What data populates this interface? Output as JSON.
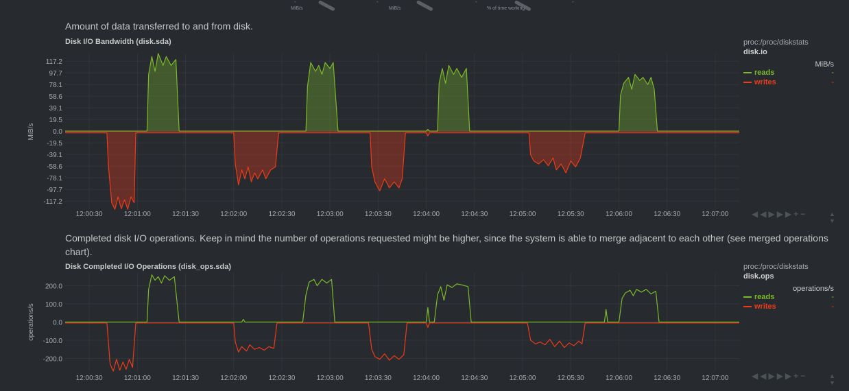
{
  "gauges": [
    {
      "unit": "MiB/s",
      "dash": "-"
    },
    {
      "unit": "MiB/s",
      "dash": "-"
    },
    {
      "unit": "% of time working",
      "dash": "-"
    }
  ],
  "sections": [
    {
      "description": "Amount of data transferred to and from disk.",
      "title": "Disk I/O Bandwidth (disk.sda)",
      "context": "proc:/proc/diskstats",
      "context_id": "disk.io",
      "units": "MiB/s",
      "legend": [
        {
          "name": "reads",
          "value": "-",
          "color": "#7cba29"
        },
        {
          "name": "writes",
          "value": "-",
          "color": "#ee3b19"
        }
      ],
      "toolbar_icons": [
        "rewind-icon",
        "play-icon",
        "forward-icon",
        "zoom-in-icon",
        "zoom-out-icon"
      ]
    },
    {
      "description": "Completed disk I/O operations. Keep in mind the number of operations requested might be higher, since the system is able to merge adjacent to each other (see merged operations chart).",
      "title": "Disk Completed I/O Operations (disk_ops.sda)",
      "context": "proc:/proc/diskstats",
      "context_id": "disk.ops",
      "units": "operations/s",
      "legend": [
        {
          "name": "reads",
          "value": "-",
          "color": "#7cba29"
        },
        {
          "name": "writes",
          "value": "-",
          "color": "#ee3b19"
        }
      ],
      "toolbar_icons": [
        "rewind-icon",
        "play-icon",
        "forward-icon",
        "zoom-in-icon",
        "zoom-out-icon"
      ]
    }
  ],
  "chart_data": [
    {
      "type": "area",
      "title": "Disk I/O Bandwidth (disk.sda)",
      "ylabel": "MiB/s",
      "ylim": [
        -132,
        130
      ],
      "yticks": [
        "117.2",
        "97.7",
        "78.1",
        "58.6",
        "39.1",
        "19.5",
        "0.0",
        "-19.5",
        "-39.1",
        "-58.6",
        "-78.1",
        "-97.7",
        "-117.2"
      ],
      "ytick_values": [
        117.2,
        97.7,
        78.1,
        58.6,
        39.1,
        19.5,
        0,
        -19.5,
        -39.1,
        -58.6,
        -78.1,
        -97.7,
        -117.2
      ],
      "xlim": [
        "12:00:15",
        "12:07:15"
      ],
      "xticks": [
        "12:00:30",
        "12:01:00",
        "12:01:30",
        "12:02:00",
        "12:02:30",
        "12:03:00",
        "12:03:30",
        "12:04:00",
        "12:04:30",
        "12:05:00",
        "12:05:30",
        "12:06:00",
        "12:06:30",
        "12:07:00"
      ],
      "grid": true,
      "legend": "right",
      "series": [
        {
          "name": "reads",
          "color": "#7cba29",
          "points": [
            [
              "12:00:15",
              0
            ],
            [
              "12:01:06",
              0
            ],
            [
              "12:01:07",
              95
            ],
            [
              "12:01:09",
              125
            ],
            [
              "12:01:11",
              100
            ],
            [
              "12:01:13",
              130
            ],
            [
              "12:01:16",
              110
            ],
            [
              "12:01:18",
              125
            ],
            [
              "12:01:21",
              110
            ],
            [
              "12:01:24",
              120
            ],
            [
              "12:01:26",
              0
            ],
            [
              "12:02:45",
              0
            ],
            [
              "12:02:46",
              75
            ],
            [
              "12:02:48",
              115
            ],
            [
              "12:02:51",
              100
            ],
            [
              "12:02:53",
              110
            ],
            [
              "12:02:55",
              95
            ],
            [
              "12:02:57",
              115
            ],
            [
              "12:03:00",
              105
            ],
            [
              "12:03:02",
              115
            ],
            [
              "12:03:05",
              0
            ],
            [
              "12:04:00",
              0
            ],
            [
              "12:04:01",
              3
            ],
            [
              "12:04:02",
              0
            ],
            [
              "12:04:07",
              0
            ],
            [
              "12:04:08",
              80
            ],
            [
              "12:04:10",
              105
            ],
            [
              "12:04:12",
              80
            ],
            [
              "12:04:14",
              110
            ],
            [
              "12:04:17",
              95
            ],
            [
              "12:04:19",
              105
            ],
            [
              "12:04:22",
              90
            ],
            [
              "12:04:25",
              105
            ],
            [
              "12:04:27",
              0
            ],
            [
              "12:06:00",
              0
            ],
            [
              "12:06:01",
              60
            ],
            [
              "12:06:03",
              80
            ],
            [
              "12:06:06",
              90
            ],
            [
              "12:06:08",
              70
            ],
            [
              "12:06:10",
              95
            ],
            [
              "12:06:13",
              85
            ],
            [
              "12:06:15",
              90
            ],
            [
              "12:06:18",
              78
            ],
            [
              "12:06:20",
              90
            ],
            [
              "12:06:22",
              70
            ],
            [
              "12:06:24",
              0
            ],
            [
              "12:07:15",
              0
            ]
          ]
        },
        {
          "name": "writes",
          "color": "#ee3b19",
          "points": [
            [
              "12:00:15",
              -3
            ],
            [
              "12:00:41",
              -3
            ],
            [
              "12:00:42",
              -60
            ],
            [
              "12:00:44",
              -120
            ],
            [
              "12:00:46",
              -131
            ],
            [
              "12:00:48",
              -110
            ],
            [
              "12:00:50",
              -130
            ],
            [
              "12:00:52",
              -115
            ],
            [
              "12:00:54",
              -131
            ],
            [
              "12:00:56",
              -110
            ],
            [
              "12:00:58",
              -120
            ],
            [
              "12:00:59",
              -3
            ],
            [
              "12:02:00",
              -3
            ],
            [
              "12:02:01",
              -55
            ],
            [
              "12:02:03",
              -90
            ],
            [
              "12:02:05",
              -65
            ],
            [
              "12:02:07",
              -80
            ],
            [
              "12:02:09",
              -60
            ],
            [
              "12:02:11",
              -85
            ],
            [
              "12:02:13",
              -70
            ],
            [
              "12:02:15",
              -80
            ],
            [
              "12:02:18",
              -65
            ],
            [
              "12:02:20",
              -80
            ],
            [
              "12:02:23",
              -65
            ],
            [
              "12:02:26",
              -60
            ],
            [
              "12:02:28",
              -3
            ],
            [
              "12:03:25",
              -3
            ],
            [
              "12:03:26",
              -60
            ],
            [
              "12:03:28",
              -85
            ],
            [
              "12:03:31",
              -100
            ],
            [
              "12:03:34",
              -80
            ],
            [
              "12:03:37",
              -95
            ],
            [
              "12:03:40",
              -85
            ],
            [
              "12:03:43",
              -95
            ],
            [
              "12:03:45",
              -80
            ],
            [
              "12:03:47",
              -3
            ],
            [
              "12:04:00",
              -3
            ],
            [
              "12:04:01",
              -8
            ],
            [
              "12:04:02",
              -3
            ],
            [
              "12:05:04",
              -3
            ],
            [
              "12:05:05",
              -40
            ],
            [
              "12:05:07",
              -50
            ],
            [
              "12:05:10",
              -55
            ],
            [
              "12:05:13",
              -48
            ],
            [
              "12:05:16",
              -58
            ],
            [
              "12:05:19",
              -45
            ],
            [
              "12:05:21",
              -65
            ],
            [
              "12:05:24",
              -55
            ],
            [
              "12:05:27",
              -70
            ],
            [
              "12:05:30",
              -50
            ],
            [
              "12:05:33",
              -60
            ],
            [
              "12:05:36",
              -45
            ],
            [
              "12:05:39",
              -3
            ],
            [
              "12:07:15",
              -3
            ]
          ]
        }
      ]
    },
    {
      "type": "line",
      "title": "Disk Completed I/O Operations (disk_ops.sda)",
      "ylabel": "operations/s",
      "ylim": [
        -270,
        270
      ],
      "yticks": [
        "200.0",
        "100.0",
        "0.0",
        "-100.0",
        "-200.0"
      ],
      "ytick_values": [
        200,
        100,
        0,
        -100,
        -200
      ],
      "xlim": [
        "12:00:15",
        "12:07:15"
      ],
      "xticks": [
        "12:00:30",
        "12:01:00",
        "12:01:30",
        "12:02:00",
        "12:02:30",
        "12:03:00",
        "12:03:30",
        "12:04:00",
        "12:04:30",
        "12:05:00",
        "12:05:30",
        "12:06:00",
        "12:06:30",
        "12:07:00"
      ],
      "grid": true,
      "legend": "right",
      "series": [
        {
          "name": "reads",
          "color": "#7cba29",
          "points": [
            [
              "12:00:15",
              0
            ],
            [
              "12:01:06",
              0
            ],
            [
              "12:01:07",
              180
            ],
            [
              "12:01:09",
              260
            ],
            [
              "12:01:11",
              230
            ],
            [
              "12:01:13",
              250
            ],
            [
              "12:01:15",
              215
            ],
            [
              "12:01:17",
              255
            ],
            [
              "12:01:20",
              230
            ],
            [
              "12:01:23",
              250
            ],
            [
              "12:01:26",
              0
            ],
            [
              "12:02:05",
              0
            ],
            [
              "12:02:06",
              15
            ],
            [
              "12:02:07",
              0
            ],
            [
              "12:02:43",
              0
            ],
            [
              "12:02:45",
              150
            ],
            [
              "12:02:47",
              220
            ],
            [
              "12:02:50",
              235
            ],
            [
              "12:02:52",
              200
            ],
            [
              "12:02:55",
              235
            ],
            [
              "12:02:58",
              215
            ],
            [
              "12:03:01",
              235
            ],
            [
              "12:03:03",
              0
            ],
            [
              "12:04:00",
              0
            ],
            [
              "12:04:01",
              80
            ],
            [
              "12:04:02",
              0
            ],
            [
              "12:04:05",
              0
            ],
            [
              "12:04:07",
              150
            ],
            [
              "12:04:09",
              195
            ],
            [
              "12:04:11",
              120
            ],
            [
              "12:04:13",
              205
            ],
            [
              "12:04:16",
              190
            ],
            [
              "12:04:19",
              210
            ],
            [
              "12:04:22",
              205
            ],
            [
              "12:04:26",
              195
            ],
            [
              "12:04:28",
              0
            ],
            [
              "12:05:51",
              0
            ],
            [
              "12:05:52",
              70
            ],
            [
              "12:05:53",
              0
            ],
            [
              "12:06:00",
              0
            ],
            [
              "12:06:02",
              130
            ],
            [
              "12:06:04",
              160
            ],
            [
              "12:06:07",
              175
            ],
            [
              "12:06:09",
              145
            ],
            [
              "12:06:11",
              180
            ],
            [
              "12:06:14",
              165
            ],
            [
              "12:06:17",
              180
            ],
            [
              "12:06:20",
              155
            ],
            [
              "12:06:23",
              170
            ],
            [
              "12:06:25",
              0
            ],
            [
              "12:07:15",
              0
            ]
          ]
        },
        {
          "name": "writes",
          "color": "#ee3b19",
          "points": [
            [
              "12:00:15",
              -5
            ],
            [
              "12:00:41",
              -5
            ],
            [
              "12:00:43",
              -230
            ],
            [
              "12:00:45",
              -270
            ],
            [
              "12:00:47",
              -205
            ],
            [
              "12:00:49",
              -265
            ],
            [
              "12:00:51",
              -220
            ],
            [
              "12:00:53",
              -260
            ],
            [
              "12:00:55",
              -205
            ],
            [
              "12:00:57",
              -250
            ],
            [
              "12:00:59",
              -5
            ],
            [
              "12:02:00",
              -5
            ],
            [
              "12:02:01",
              -110
            ],
            [
              "12:02:03",
              -165
            ],
            [
              "12:02:05",
              -135
            ],
            [
              "12:02:08",
              -160
            ],
            [
              "12:02:10",
              -125
            ],
            [
              "12:02:13",
              -150
            ],
            [
              "12:02:16",
              -140
            ],
            [
              "12:02:19",
              -155
            ],
            [
              "12:02:22",
              -135
            ],
            [
              "12:02:25",
              -145
            ],
            [
              "12:02:27",
              -5
            ],
            [
              "12:03:24",
              -5
            ],
            [
              "12:03:26",
              -150
            ],
            [
              "12:03:28",
              -190
            ],
            [
              "12:03:31",
              -205
            ],
            [
              "12:03:34",
              -175
            ],
            [
              "12:03:37",
              -210
            ],
            [
              "12:03:40",
              -185
            ],
            [
              "12:03:43",
              -205
            ],
            [
              "12:03:46",
              -180
            ],
            [
              "12:03:48",
              -5
            ],
            [
              "12:04:00",
              -5
            ],
            [
              "12:04:01",
              -30
            ],
            [
              "12:04:02",
              -5
            ],
            [
              "12:05:03",
              -5
            ],
            [
              "12:05:05",
              -100
            ],
            [
              "12:05:08",
              -120
            ],
            [
              "12:05:11",
              -110
            ],
            [
              "12:05:14",
              -125
            ],
            [
              "12:05:17",
              -95
            ],
            [
              "12:05:20",
              -135
            ],
            [
              "12:05:23",
              -105
            ],
            [
              "12:05:26",
              -140
            ],
            [
              "12:05:29",
              -115
            ],
            [
              "12:05:32",
              -130
            ],
            [
              "12:05:35",
              -105
            ],
            [
              "12:05:37",
              -120
            ],
            [
              "12:05:39",
              -5
            ],
            [
              "12:07:15",
              -5
            ]
          ]
        }
      ]
    }
  ]
}
